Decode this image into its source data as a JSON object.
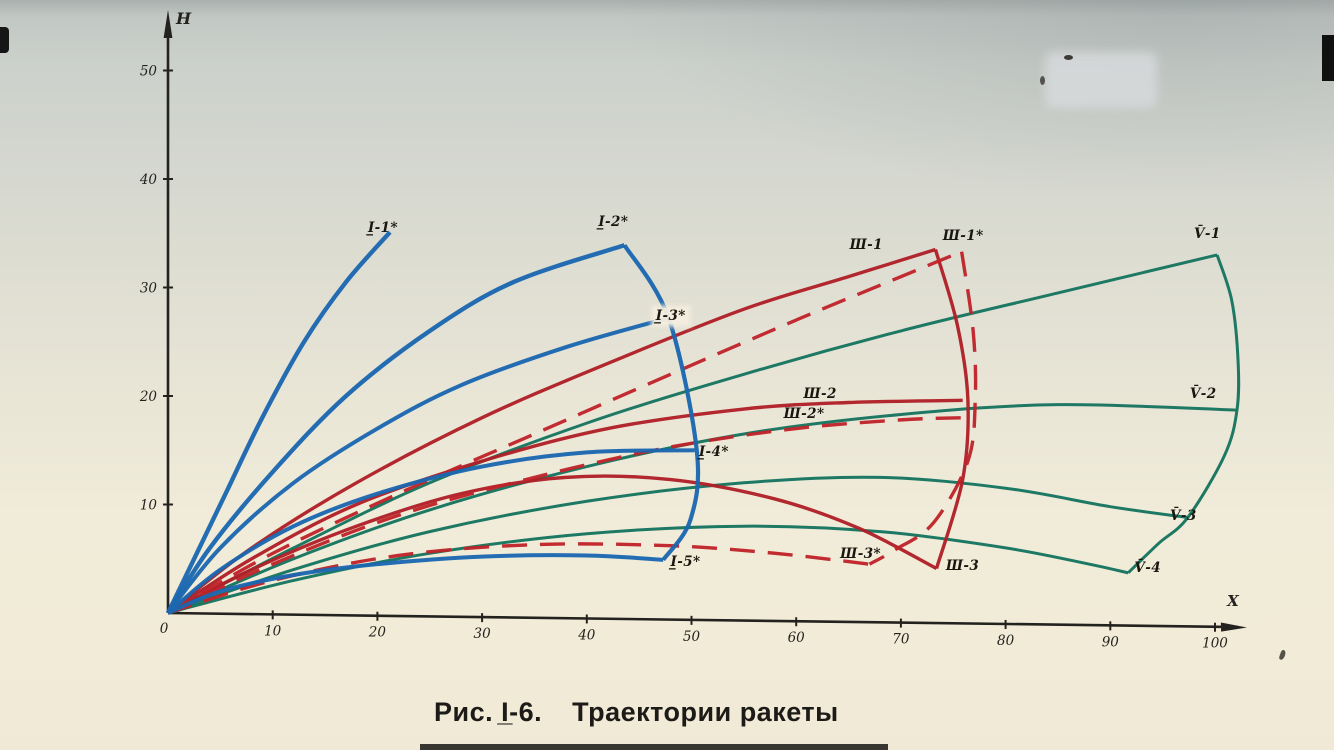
{
  "figure": {
    "caption_number": "Рис. I̲-6.",
    "caption_title": "Траектории ракеты"
  },
  "chart_data": {
    "type": "line",
    "title": "Траектории ракеты",
    "xlabel": "X",
    "ylabel": "H",
    "origin_label": "0",
    "xlim": [
      0,
      104
    ],
    "ylim": [
      0,
      56
    ],
    "x_ticks": [
      0,
      10,
      20,
      30,
      40,
      50,
      60,
      70,
      80,
      90,
      100
    ],
    "y_ticks": [
      10,
      20,
      30,
      40,
      50
    ],
    "grid": false,
    "legend": "inline-labels",
    "colors": {
      "I": "#1b67b0",
      "III": "#b01f26",
      "III_dashed": "#c0232a",
      "V": "#15745f"
    },
    "series": [
      {
        "id": "V-1",
        "name": "V̄-1",
        "group": "V",
        "dash": false,
        "width": 3.0,
        "points": [
          [
            0,
            0
          ],
          [
            12,
            6
          ],
          [
            25,
            12
          ],
          [
            40,
            17.5
          ],
          [
            55,
            22
          ],
          [
            70,
            26
          ],
          [
            85,
            29.5
          ],
          [
            100.2,
            33.0
          ]
        ]
      },
      {
        "id": "V-2",
        "name": "V̄-2",
        "group": "V",
        "dash": false,
        "width": 3.0,
        "points": [
          [
            0,
            0
          ],
          [
            12,
            5
          ],
          [
            25,
            9.5
          ],
          [
            40,
            13.5
          ],
          [
            55,
            16.5
          ],
          [
            70,
            18.3
          ],
          [
            85,
            19.2
          ],
          [
            102,
            18.7
          ]
        ]
      },
      {
        "id": "V-3",
        "name": "V̄-3",
        "group": "V",
        "dash": false,
        "width": 3.0,
        "points": [
          [
            0,
            0
          ],
          [
            12,
            4
          ],
          [
            25,
            7.5
          ],
          [
            40,
            10.3
          ],
          [
            55,
            12
          ],
          [
            68,
            12.5
          ],
          [
            80,
            11.5
          ],
          [
            90,
            9.8
          ],
          [
            97.4,
            8.8
          ]
        ]
      },
      {
        "id": "V-4",
        "name": "V̄-4",
        "group": "V",
        "dash": false,
        "width": 3.0,
        "points": [
          [
            0,
            0
          ],
          [
            12,
            3
          ],
          [
            25,
            5.5
          ],
          [
            40,
            7.3
          ],
          [
            55,
            8
          ],
          [
            68,
            7.5
          ],
          [
            80,
            6
          ],
          [
            88,
            4.5
          ],
          [
            91.7,
            3.7
          ]
        ]
      },
      {
        "id": "V-arc",
        "name": "",
        "group": "V",
        "dash": false,
        "width": 3.0,
        "points": [
          [
            100.2,
            33.0
          ],
          [
            101.6,
            28.8
          ],
          [
            102.2,
            23.3
          ],
          [
            102.1,
            18.7
          ],
          [
            100.9,
            14.5
          ],
          [
            97.4,
            8.8
          ],
          [
            94.6,
            6.4
          ],
          [
            91.7,
            3.7
          ]
        ]
      },
      {
        "id": "III-1",
        "name": "Ш-1",
        "group": "III",
        "dash": false,
        "width": 3.4,
        "points": [
          [
            0,
            0
          ],
          [
            8,
            6
          ],
          [
            18,
            12
          ],
          [
            30,
            18
          ],
          [
            42,
            23
          ],
          [
            55,
            28
          ],
          [
            65,
            31
          ],
          [
            73.3,
            33.5
          ]
        ]
      },
      {
        "id": "III-2",
        "name": "Ш-2",
        "group": "III",
        "dash": false,
        "width": 3.4,
        "points": [
          [
            0,
            0
          ],
          [
            8,
            5
          ],
          [
            18,
            10
          ],
          [
            30,
            14
          ],
          [
            42,
            17
          ],
          [
            55,
            18.8
          ],
          [
            65,
            19.4
          ],
          [
            75.9,
            19.6
          ]
        ]
      },
      {
        "id": "III-3",
        "name": "Ш-3",
        "group": "III",
        "dash": false,
        "width": 3.4,
        "points": [
          [
            0,
            0
          ],
          [
            8,
            4
          ],
          [
            18,
            8
          ],
          [
            28,
            11
          ],
          [
            38,
            12.5
          ],
          [
            48,
            12.3
          ],
          [
            58,
            10.5
          ],
          [
            66,
            7.8
          ],
          [
            73.4,
            4.1
          ]
        ]
      },
      {
        "id": "III-arc",
        "name": "",
        "group": "III",
        "dash": false,
        "width": 3.4,
        "points": [
          [
            73.3,
            33.5
          ],
          [
            75.4,
            26.5
          ],
          [
            76.4,
            19.6
          ],
          [
            75.9,
            12.3
          ],
          [
            73.4,
            4.1
          ]
        ]
      },
      {
        "id": "III-1*",
        "name": "Ш-1*",
        "group": "III_dashed",
        "dash": true,
        "width": 3.4,
        "points": [
          [
            0,
            0
          ],
          [
            10,
            5.5
          ],
          [
            22,
            11
          ],
          [
            35,
            16.5
          ],
          [
            48,
            22
          ],
          [
            60,
            27
          ],
          [
            70,
            31
          ],
          [
            75.8,
            33.3
          ]
        ]
      },
      {
        "id": "III-2*",
        "name": "Ш-2*",
        "group": "III_dashed",
        "dash": true,
        "width": 3.4,
        "points": [
          [
            0,
            0
          ],
          [
            10,
            4.5
          ],
          [
            22,
            9
          ],
          [
            35,
            12.5
          ],
          [
            48,
            15.3
          ],
          [
            60,
            17
          ],
          [
            70,
            17.8
          ],
          [
            76,
            18.0
          ]
        ]
      },
      {
        "id": "III-3*",
        "name": "Ш-3*",
        "group": "III_dashed",
        "dash": true,
        "width": 3.4,
        "points": [
          [
            0,
            0
          ],
          [
            10,
            3
          ],
          [
            22,
            5.3
          ],
          [
            35,
            6.3
          ],
          [
            48,
            6.2
          ],
          [
            58,
            5.5
          ],
          [
            67,
            4.5
          ]
        ]
      },
      {
        "id": "III-arc*",
        "name": "",
        "group": "III_dashed",
        "dash": true,
        "width": 3.4,
        "points": [
          [
            75.8,
            33.3
          ],
          [
            76.9,
            26
          ],
          [
            77.1,
            19.6
          ],
          [
            76.4,
            14
          ],
          [
            73.1,
            8.3
          ],
          [
            69.4,
            5.8
          ],
          [
            67,
            4.5
          ]
        ]
      },
      {
        "id": "I-1*",
        "name": "I̲-1*",
        "group": "I",
        "dash": false,
        "width": 4.4,
        "points": [
          [
            0,
            0
          ],
          [
            2.5,
            5
          ],
          [
            5.5,
            11
          ],
          [
            9,
            18
          ],
          [
            13,
            25
          ],
          [
            17,
            30.5
          ],
          [
            21.2,
            35.1
          ]
        ]
      },
      {
        "id": "I-2*",
        "name": "I̲-2*",
        "group": "I",
        "dash": false,
        "width": 4.4,
        "points": [
          [
            0,
            0
          ],
          [
            4,
            6
          ],
          [
            10,
            13
          ],
          [
            17,
            20
          ],
          [
            25,
            26
          ],
          [
            33,
            30.5
          ],
          [
            43.6,
            33.9
          ]
        ]
      },
      {
        "id": "I-3*",
        "name": "I̲-3*",
        "group": "I",
        "dash": false,
        "width": 4.0,
        "points": [
          [
            0,
            0
          ],
          [
            5,
            6
          ],
          [
            12,
            12
          ],
          [
            20,
            17
          ],
          [
            28,
            21
          ],
          [
            38,
            24.5
          ],
          [
            47.8,
            27.2
          ]
        ]
      },
      {
        "id": "I-4*",
        "name": "I̲-4*",
        "group": "I",
        "dash": false,
        "width": 4.0,
        "points": [
          [
            0,
            0
          ],
          [
            5,
            4
          ],
          [
            12,
            8
          ],
          [
            20,
            11
          ],
          [
            30,
            13.5
          ],
          [
            40,
            14.8
          ],
          [
            50.3,
            15.0
          ]
        ]
      },
      {
        "id": "I-5*",
        "name": "I̲-5*",
        "group": "I",
        "dash": false,
        "width": 4.0,
        "points": [
          [
            0,
            0
          ],
          [
            5,
            2
          ],
          [
            12,
            3.5
          ],
          [
            20,
            4.5
          ],
          [
            30,
            5.2
          ],
          [
            40,
            5.3
          ],
          [
            47.3,
            4.9
          ]
        ]
      },
      {
        "id": "I-arc",
        "name": "",
        "group": "I",
        "dash": false,
        "width": 4.2,
        "points": [
          [
            43.6,
            33.9
          ],
          [
            47.8,
            27.2
          ],
          [
            50.5,
            15.0
          ],
          [
            49.9,
            8.6
          ],
          [
            47.3,
            4.9
          ]
        ]
      }
    ],
    "labels": [
      {
        "text": "I̲-1*",
        "x": 19.1,
        "y": 36.2,
        "badge": false
      },
      {
        "text": "I̲-2*",
        "x": 41.1,
        "y": 36.8,
        "badge": false
      },
      {
        "text": "I̲-3*",
        "x": 46.4,
        "y": 28.1,
        "badge": true
      },
      {
        "text": "I̲-4*",
        "x": 50.7,
        "y": 15.6,
        "badge": false
      },
      {
        "text": "I̲-5*",
        "x": 48.0,
        "y": 5.4,
        "badge": false
      },
      {
        "text": "Ш-1",
        "x": 65.1,
        "y": 34.7,
        "badge": false
      },
      {
        "text": "Ш-1*",
        "x": 74.0,
        "y": 35.5,
        "badge": false
      },
      {
        "text": "Ш-2",
        "x": 60.7,
        "y": 20.9,
        "badge": false
      },
      {
        "text": "Ш-2*",
        "x": 58.8,
        "y": 19.1,
        "badge": false
      },
      {
        "text": "Ш-3*",
        "x": 64.2,
        "y": 6.2,
        "badge": false
      },
      {
        "text": "Ш-3",
        "x": 74.3,
        "y": 5.1,
        "badge": false
      },
      {
        "text": "V̄-1",
        "x": 98.0,
        "y": 35.7,
        "badge": false
      },
      {
        "text": "V̄-2",
        "x": 97.6,
        "y": 20.9,
        "badge": false
      },
      {
        "text": "V̄-3",
        "x": 95.7,
        "y": 9.7,
        "badge": false
      },
      {
        "text": "V̄-4",
        "x": 92.3,
        "y": 4.9,
        "badge": false
      }
    ]
  }
}
